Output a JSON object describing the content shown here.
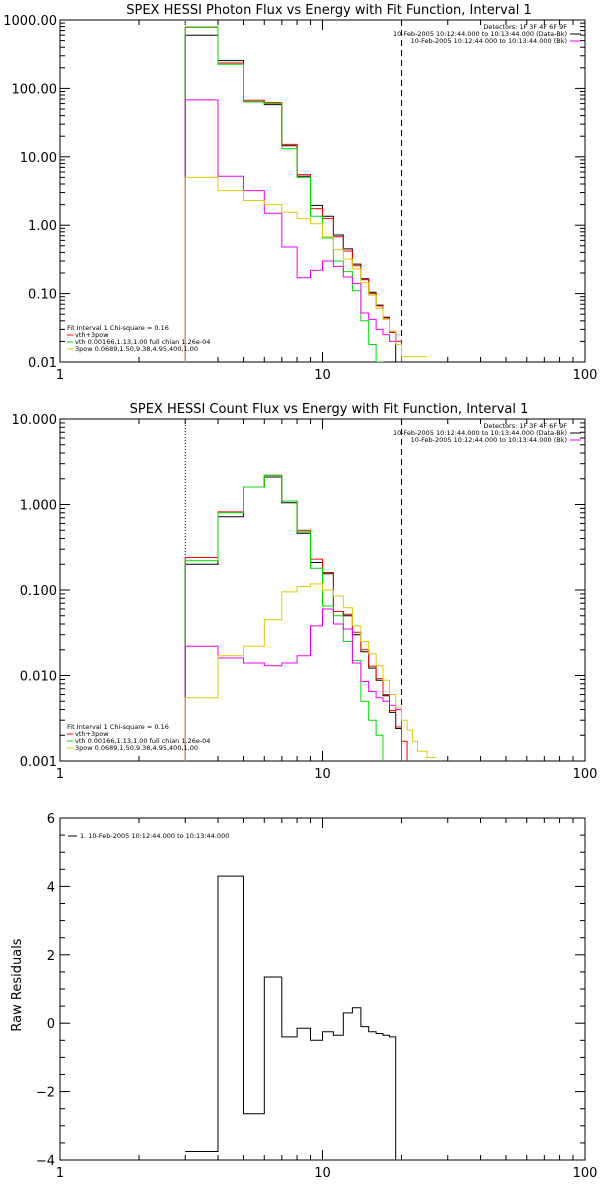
{
  "chart_data": [
    {
      "type": "line",
      "title": "SPEX HESSI Photon Flux vs Energy with Fit Function, Interval 1",
      "xlabel": "",
      "ylabel": "",
      "x_log": true,
      "y_log": true,
      "xlim": [
        1,
        100
      ],
      "ylim": [
        0.01,
        1000
      ],
      "x_tick_labels": [
        "1",
        "10",
        "100"
      ],
      "y_tick_labels": [
        "0.01",
        "0.10",
        "1.00",
        "10.00",
        "100.00",
        "1000.00"
      ],
      "bin_edges": [
        3,
        4,
        5,
        6,
        7,
        8,
        9,
        10,
        11,
        12,
        13,
        14,
        15,
        16,
        17,
        18,
        19,
        20,
        25
      ],
      "series": [
        {
          "color": "#000000",
          "values": [
            600,
            255,
            64,
            58,
            14.5,
            5.2,
            1.95,
            1.35,
            0.72,
            0.45,
            0.27,
            0.165,
            0.105,
            0.068,
            0.045,
            0.028,
            null,
            null
          ]
        },
        {
          "color": "#ff0000",
          "values": [
            780,
            235,
            67,
            62,
            15.2,
            5.5,
            1.75,
            1.25,
            0.68,
            0.42,
            0.255,
            0.16,
            0.1,
            0.066,
            0.044,
            0.027,
            0.02,
            null
          ]
        },
        {
          "color": "#00dd00",
          "values": [
            790,
            225,
            64,
            60,
            13.2,
            5.0,
            1.35,
            0.65,
            0.3,
            0.21,
            0.11,
            0.04,
            0.018,
            0.01,
            null,
            null,
            null,
            null
          ]
        },
        {
          "color": "#ee00ee",
          "values": [
            68,
            5.2,
            3.2,
            1.5,
            0.48,
            0.17,
            0.22,
            0.3,
            0.25,
            0.175,
            0.14,
            0.052,
            0.042,
            0.03,
            0.025,
            0.02,
            0.018,
            null
          ]
        },
        {
          "color": "#ddcc00",
          "values": [
            5.0,
            3.2,
            2.3,
            2.0,
            1.55,
            1.25,
            1.05,
            0.68,
            0.44,
            0.32,
            0.23,
            0.145,
            0.095,
            0.06,
            0.042,
            0.028,
            0.018,
            0.012
          ]
        }
      ],
      "vlines": [
        {
          "x": 3,
          "style": "dotted",
          "color": "#ddcc00"
        },
        {
          "x": 20,
          "style": "dashed",
          "color": "#000000"
        }
      ],
      "legend_top_right": [
        {
          "text": "Detectors: 1F 3F 4F 6F 9F",
          "color": "#000000"
        },
        {
          "text": "10-Feb-2005 10:12:44.000 to 10:13:44.000 (Data-Bk)",
          "color": "#000000"
        },
        {
          "text": "10-Feb-2005 10:12:44.000 to 10:13:44.000 (Bk)",
          "color": "#ee00ee"
        }
      ],
      "legend_bottom_left": [
        {
          "text": "Fit Interval 1    Chi-square = 0.16",
          "color": "#000000"
        },
        {
          "text": "vth+3pow",
          "color": "#ff0000"
        },
        {
          "text": "vth 0.00166,1.13,1.00  full chian 1.26e-04",
          "color": "#00dd00"
        },
        {
          "text": "3pow 0.0689,1.50,9.38,4.95,400,1.00",
          "color": "#ddcc00"
        }
      ]
    },
    {
      "type": "line",
      "title": "SPEX HESSI Count Flux vs Energy with Fit Function, Interval 1",
      "xlabel": "",
      "ylabel": "",
      "x_log": true,
      "y_log": true,
      "xlim": [
        1,
        100
      ],
      "ylim": [
        0.001,
        10
      ],
      "x_tick_labels": [
        "1",
        "10",
        "100"
      ],
      "y_tick_labels": [
        "0.001",
        "0.010",
        "0.100",
        "1.000",
        "10.000"
      ],
      "bin_edges": [
        3,
        4,
        5,
        6,
        7,
        8,
        9,
        10,
        11,
        12,
        13,
        14,
        15,
        16,
        17,
        18,
        19,
        20,
        21,
        22,
        23,
        25,
        27
      ],
      "series": [
        {
          "color": "#000000",
          "values": [
            0.2,
            0.72,
            1.6,
            2.1,
            1.05,
            0.46,
            0.21,
            0.155,
            0.056,
            0.05,
            0.03,
            0.019,
            0.0122,
            0.0088,
            0.0058,
            0.0037,
            0.0024,
            null,
            null,
            null,
            null,
            null
          ]
        },
        {
          "color": "#ff0000",
          "values": [
            0.24,
            0.82,
            1.6,
            2.2,
            1.1,
            0.5,
            0.23,
            0.16,
            0.056,
            0.052,
            0.032,
            0.02,
            0.0128,
            0.0092,
            0.006,
            0.0039,
            0.0025,
            0.0017,
            null,
            null,
            null,
            null
          ]
        },
        {
          "color": "#00dd00",
          "values": [
            0.22,
            0.8,
            1.6,
            2.2,
            1.1,
            0.48,
            0.18,
            0.065,
            0.05,
            0.025,
            0.015,
            0.005,
            0.003,
            0.002,
            null,
            null,
            null,
            null,
            null,
            null,
            null,
            null
          ]
        },
        {
          "color": "#ee00ee",
          "values": [
            0.022,
            0.016,
            0.014,
            0.013,
            0.014,
            0.017,
            0.038,
            0.06,
            0.04,
            0.035,
            0.014,
            0.0085,
            0.0065,
            0.0055,
            0.005,
            0.0045,
            0.004,
            null,
            null,
            null,
            null,
            null
          ]
        },
        {
          "color": "#ddcc00",
          "values": [
            0.0055,
            0.017,
            0.022,
            0.045,
            0.095,
            0.11,
            0.118,
            0.1,
            0.085,
            0.062,
            0.038,
            0.025,
            0.018,
            0.013,
            0.0088,
            0.006,
            0.0042,
            0.003,
            0.0023,
            0.0017,
            0.0013,
            0.0011
          ]
        }
      ],
      "vlines": [
        {
          "x": 3,
          "style": "dotted",
          "color": "#000000"
        },
        {
          "x": 20,
          "style": "dashed",
          "color": "#000000"
        }
      ],
      "legend_top_right": [
        {
          "text": "Detectors: 1F 3F 4F 6F 9F",
          "color": "#000000"
        },
        {
          "text": "10-Feb-2005 10:12:44.000 to 10:13:44.000 (Data-Bk)",
          "color": "#000000"
        },
        {
          "text": "10-Feb-2005 10:12:44.000 to 10:13:44.000 (Bk)",
          "color": "#ee00ee"
        }
      ],
      "legend_bottom_left": [
        {
          "text": "Fit Interval 1    Chi-square = 0.16",
          "color": "#000000"
        },
        {
          "text": "vth+3pow",
          "color": "#ff0000"
        },
        {
          "text": "vth 0.00166,1.13,1.00  full chian 1.26e-04",
          "color": "#00dd00"
        },
        {
          "text": "3pow 0.0689,1.50,9.38,4.95,400,1.00",
          "color": "#ddcc00"
        }
      ]
    },
    {
      "type": "line",
      "title": "",
      "xlabel": "",
      "ylabel": "Raw Residuals",
      "x_log": true,
      "y_log": false,
      "xlim": [
        1,
        100
      ],
      "ylim": [
        -4,
        6
      ],
      "x_tick_labels": [
        "1",
        "10",
        "100"
      ],
      "y_tick_labels": [
        "-4",
        "-2",
        "0",
        "2",
        "4",
        "6"
      ],
      "y_tick_values": [
        -4,
        -2,
        0,
        2,
        4,
        6
      ],
      "bin_edges": [
        3,
        4,
        5,
        6,
        7,
        8,
        9,
        10,
        11,
        12,
        13,
        14,
        15,
        16,
        17,
        18,
        19,
        20
      ],
      "series": [
        {
          "color": "#000000",
          "values": [
            -3.75,
            4.3,
            -2.65,
            1.35,
            -0.4,
            -0.15,
            -0.5,
            -0.25,
            -0.35,
            0.3,
            0.45,
            -0.1,
            -0.25,
            -0.3,
            -0.35,
            -0.4,
            -4.0
          ]
        }
      ],
      "vlines": [],
      "legend_top_left": [
        {
          "text": "1. 10-Feb-2005 10:12:44.000 to 10:13:44.000",
          "color": "#000000"
        }
      ]
    }
  ]
}
